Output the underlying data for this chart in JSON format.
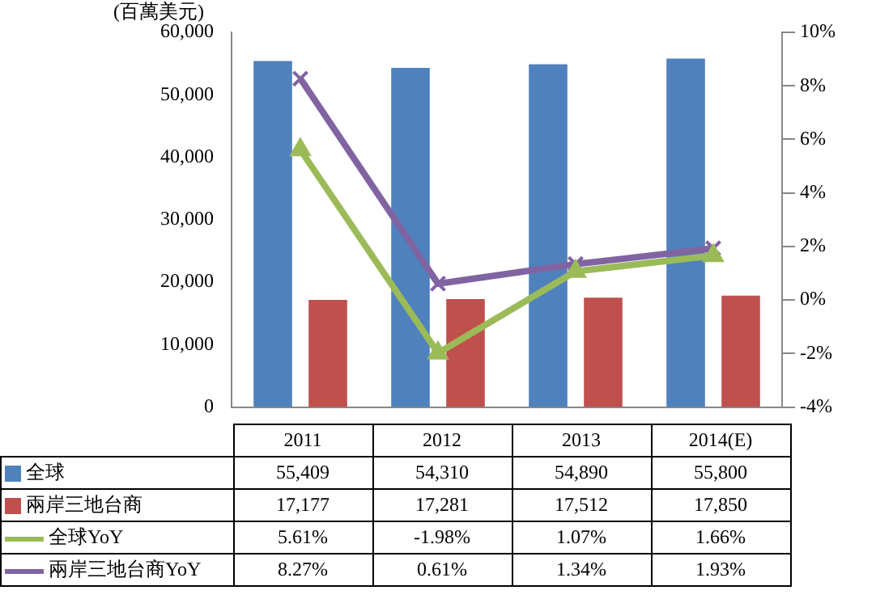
{
  "chart_data": {
    "type": "bar",
    "ylabel": "(百萬美元)",
    "categories": [
      "2011",
      "2012",
      "2013",
      "2014(E)"
    ],
    "series": [
      {
        "name": "全球",
        "color": "#4f81bd",
        "values": [
          55409,
          54310,
          54890,
          55800
        ],
        "value_labels": [
          "55,409",
          "54,310",
          "54,890",
          "55,800"
        ]
      },
      {
        "name": "兩岸三地台商",
        "color": "#c0504d",
        "values": [
          17177,
          17281,
          17512,
          17850
        ],
        "value_labels": [
          "17,177",
          "17,281",
          "17,512",
          "17,850"
        ]
      },
      {
        "name": "全球YoY",
        "type": "line",
        "axis": "y2",
        "marker": "triangle",
        "color": "#9bbb59",
        "values": [
          5.61,
          -1.98,
          1.07,
          1.66
        ],
        "value_labels": [
          "5.61%",
          "-1.98%",
          "1.07%",
          "1.66%"
        ]
      },
      {
        "name": "兩岸三地台商YoY",
        "type": "line",
        "axis": "y2",
        "marker": "cross",
        "color": "#8064a2",
        "values": [
          8.27,
          0.61,
          1.34,
          1.93
        ],
        "value_labels": [
          "8.27%",
          "0.61%",
          "1.34%",
          "1.93%"
        ]
      }
    ],
    "ylim": [
      0,
      60000
    ],
    "yticks": [
      {
        "value": 0,
        "label": "0"
      },
      {
        "value": 10000,
        "label": "10,000"
      },
      {
        "value": 20000,
        "label": "20,000"
      },
      {
        "value": 30000,
        "label": "30,000"
      },
      {
        "value": 40000,
        "label": "40,000"
      },
      {
        "value": 50000,
        "label": "50,000"
      },
      {
        "value": 60000,
        "label": "60,000"
      }
    ],
    "y2lim": [
      -4,
      10
    ],
    "y2ticks": [
      {
        "value": -4,
        "label": "-4%"
      },
      {
        "value": -2,
        "label": "-2%"
      },
      {
        "value": 0,
        "label": "0%"
      },
      {
        "value": 2,
        "label": "2%"
      },
      {
        "value": 4,
        "label": "4%"
      },
      {
        "value": 6,
        "label": "6%"
      },
      {
        "value": 8,
        "label": "8%"
      },
      {
        "value": 10,
        "label": "10%"
      }
    ],
    "grid": false,
    "legend": "bottom"
  }
}
